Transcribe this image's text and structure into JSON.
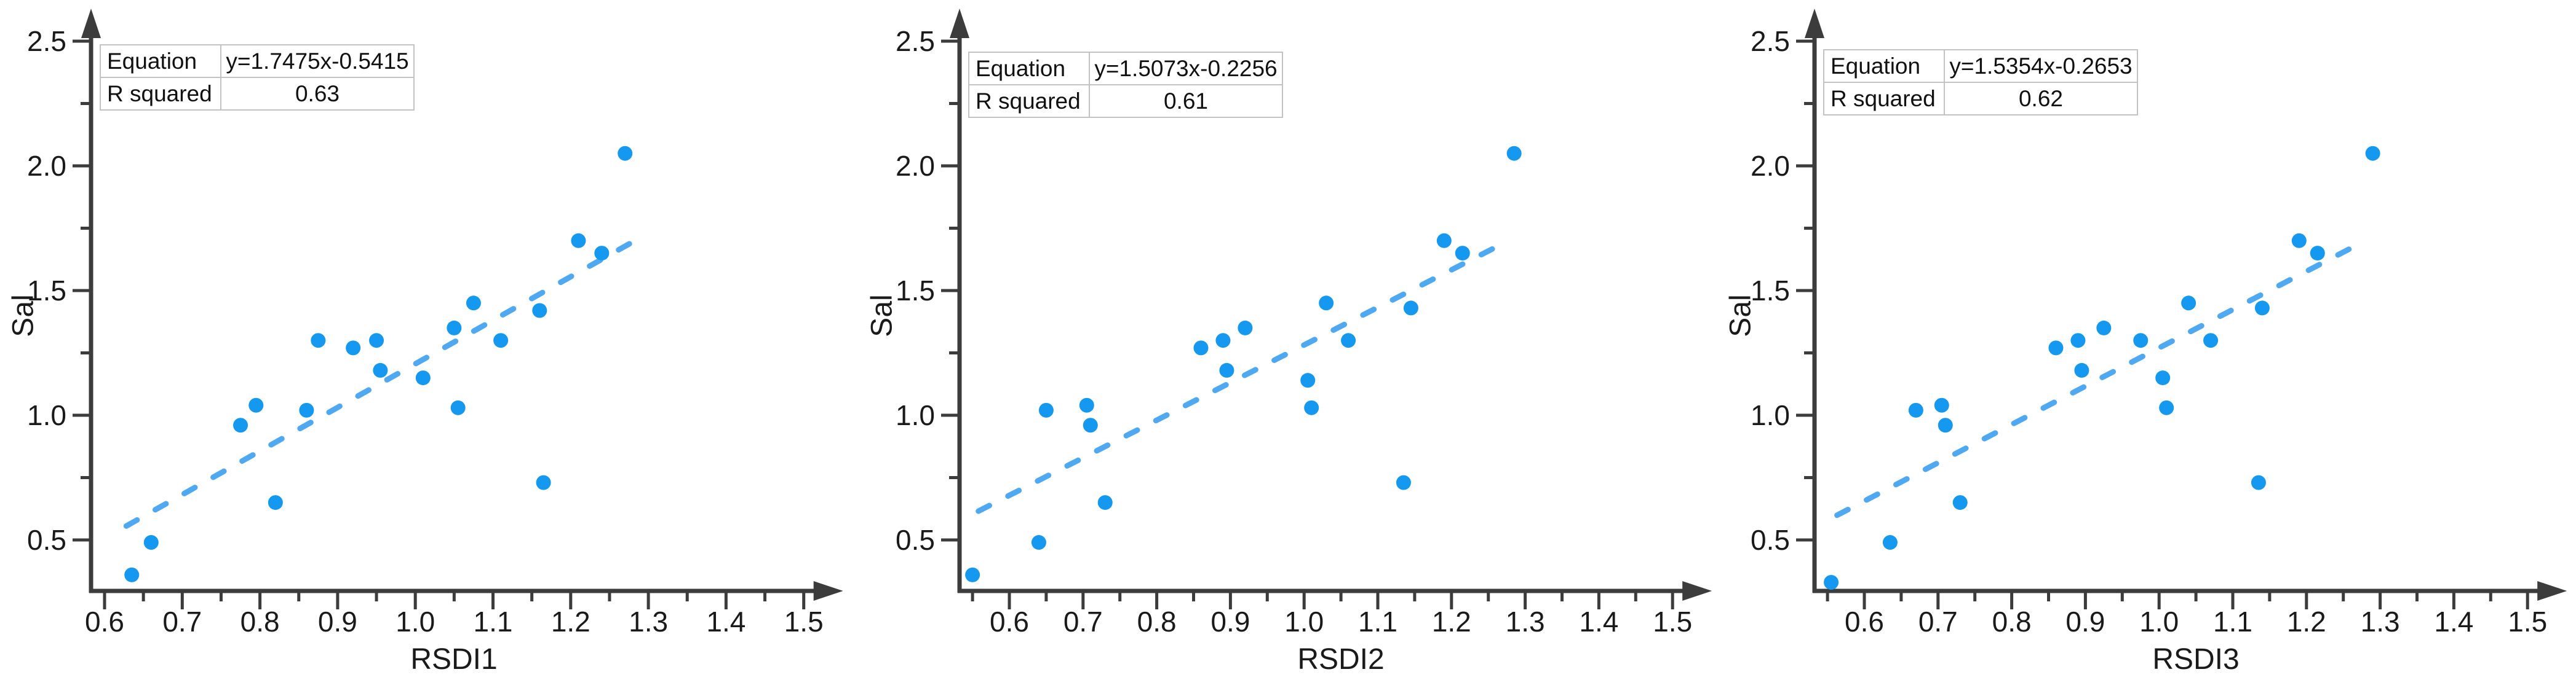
{
  "style": {
    "background": "#ffffff",
    "point_color": "#1598f0",
    "trend_color": "#4fa9f2",
    "axis_color": "#3c3c3c",
    "text_color": "#1a1a1a",
    "legend_border_color": "#9e9e9e",
    "legend_grid_color": "#c3c3c3"
  },
  "chart_data": [
    {
      "type": "scatter",
      "xlabel": "RSDI1",
      "ylabel": "Sal",
      "xlim": [
        0.585,
        1.55
      ],
      "ylim": [
        0.3,
        2.6
      ],
      "xticks": [
        0.6,
        0.7,
        0.8,
        0.9,
        1.0,
        1.1,
        1.2,
        1.3,
        1.4,
        1.5
      ],
      "yticks": [
        0.5,
        1.0,
        1.5,
        2.0,
        2.5
      ],
      "grid": false,
      "legend": {
        "position": "top-left",
        "equation_label": "Equation",
        "equation_value": "y=1.7475x-0.5415",
        "r_squared_label": "R squared",
        "r_squared_value": "0.63"
      },
      "points": [
        [
          0.635,
          0.36
        ],
        [
          0.66,
          0.49
        ],
        [
          0.775,
          0.96
        ],
        [
          0.795,
          1.04
        ],
        [
          0.82,
          0.65
        ],
        [
          0.86,
          1.02
        ],
        [
          0.875,
          1.3
        ],
        [
          0.92,
          1.27
        ],
        [
          0.95,
          1.3
        ],
        [
          0.955,
          1.18
        ],
        [
          1.01,
          1.15
        ],
        [
          1.05,
          1.35
        ],
        [
          1.055,
          1.03
        ],
        [
          1.075,
          1.45
        ],
        [
          1.11,
          1.3
        ],
        [
          1.16,
          1.42
        ],
        [
          1.165,
          0.73
        ],
        [
          1.21,
          1.7
        ],
        [
          1.24,
          1.65
        ],
        [
          1.27,
          2.05
        ]
      ],
      "trendline": {
        "style": "dashed",
        "slope": 1.7475,
        "intercept": -0.5415,
        "x_start": 0.628,
        "x_end": 1.285
      }
    },
    {
      "type": "scatter",
      "xlabel": "RSDI2",
      "ylabel": "Sal",
      "xlim": [
        0.537,
        1.55
      ],
      "ylim": [
        0.3,
        2.6
      ],
      "xticks": [
        0.6,
        0.7,
        0.8,
        0.9,
        1.0,
        1.1,
        1.2,
        1.3,
        1.4,
        1.5
      ],
      "yticks": [
        0.5,
        1.0,
        1.5,
        2.0,
        2.5
      ],
      "grid": false,
      "legend": {
        "position": "top-left",
        "equation_label": "Equation",
        "equation_value": "y=1.5073x-0.2256",
        "r_squared_label": "R squared",
        "r_squared_value": "0.61"
      },
      "points": [
        [
          0.55,
          0.36
        ],
        [
          0.64,
          0.49
        ],
        [
          0.65,
          1.02
        ],
        [
          0.705,
          1.04
        ],
        [
          0.71,
          0.96
        ],
        [
          0.73,
          0.65
        ],
        [
          0.86,
          1.27
        ],
        [
          0.89,
          1.3
        ],
        [
          0.895,
          1.18
        ],
        [
          0.92,
          1.35
        ],
        [
          1.005,
          1.14
        ],
        [
          1.01,
          1.03
        ],
        [
          1.03,
          1.45
        ],
        [
          1.06,
          1.3
        ],
        [
          1.135,
          0.73
        ],
        [
          1.145,
          1.43
        ],
        [
          1.19,
          1.7
        ],
        [
          1.215,
          1.65
        ],
        [
          1.285,
          2.05
        ]
      ],
      "trendline": {
        "style": "dashed",
        "slope": 1.5073,
        "intercept": -0.2256,
        "x_start": 0.558,
        "x_end": 1.272
      }
    },
    {
      "type": "scatter",
      "xlabel": "RSDI3",
      "ylabel": "Sal",
      "xlim": [
        0.537,
        1.55
      ],
      "ylim": [
        0.3,
        2.6
      ],
      "xticks": [
        0.6,
        0.7,
        0.8,
        0.9,
        1.0,
        1.1,
        1.2,
        1.3,
        1.4,
        1.5
      ],
      "yticks": [
        0.5,
        1.0,
        1.5,
        2.0,
        2.5
      ],
      "grid": false,
      "legend": {
        "position": "top-left",
        "equation_label": "Equation",
        "equation_value": "y=1.5354x-0.2653",
        "r_squared_label": "R squared",
        "r_squared_value": "0.62"
      },
      "points": [
        [
          0.555,
          0.33
        ],
        [
          0.635,
          0.49
        ],
        [
          0.67,
          1.02
        ],
        [
          0.705,
          1.04
        ],
        [
          0.71,
          0.96
        ],
        [
          0.73,
          0.65
        ],
        [
          0.86,
          1.27
        ],
        [
          0.89,
          1.3
        ],
        [
          0.895,
          1.18
        ],
        [
          0.925,
          1.35
        ],
        [
          0.975,
          1.3
        ],
        [
          1.005,
          1.15
        ],
        [
          1.01,
          1.03
        ],
        [
          1.04,
          1.45
        ],
        [
          1.07,
          1.3
        ],
        [
          1.135,
          0.73
        ],
        [
          1.14,
          1.43
        ],
        [
          1.19,
          1.7
        ],
        [
          1.215,
          1.65
        ],
        [
          1.29,
          2.05
        ]
      ],
      "trendline": {
        "style": "dashed",
        "slope": 1.5354,
        "intercept": -0.2653,
        "x_start": 0.563,
        "x_end": 1.268
      }
    }
  ]
}
